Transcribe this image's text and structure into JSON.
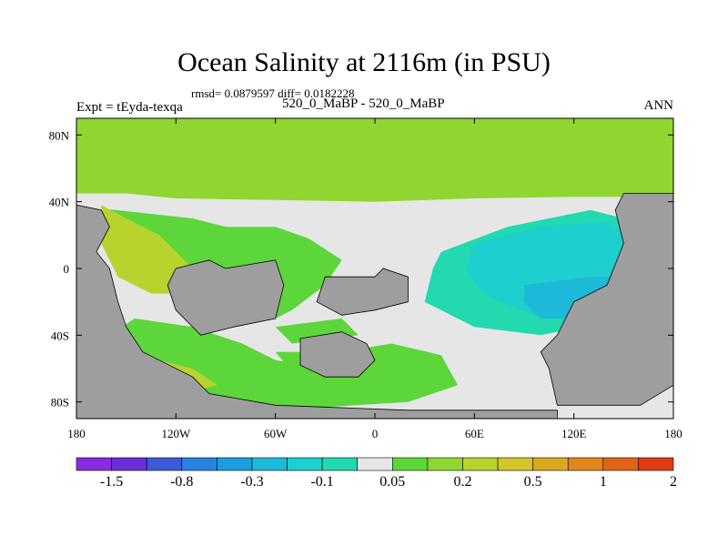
{
  "header": {
    "title": "Ocean Salinity at 2116m (in PSU)",
    "stats": "rmsd= 0.0879597 diff= 0.0182228",
    "left_label": "Expt = tEyda-texqa",
    "center_label": "520_0_MaBP - 520_0_MaBP",
    "right_label": "ANN"
  },
  "chart_data": {
    "type": "heatmap",
    "title": "Ocean Salinity at 2116m (in PSU)",
    "projection": "cylindrical equidistant",
    "x_range": [
      -180,
      180
    ],
    "y_range": [
      -90,
      90
    ],
    "x_ticks": [
      {
        "value": -180,
        "label": "180"
      },
      {
        "value": -120,
        "label": "120W"
      },
      {
        "value": -60,
        "label": "60W"
      },
      {
        "value": 0,
        "label": "0"
      },
      {
        "value": 60,
        "label": "60E"
      },
      {
        "value": 120,
        "label": "120E"
      },
      {
        "value": 180,
        "label": "180"
      }
    ],
    "y_ticks": [
      {
        "value": 80,
        "label": "80N"
      },
      {
        "value": 40,
        "label": "40N"
      },
      {
        "value": 0,
        "label": "0"
      },
      {
        "value": -40,
        "label": "40S"
      },
      {
        "value": -80,
        "label": "80S"
      }
    ],
    "colorbar": {
      "colors": [
        "#8a2be2",
        "#6a2fd8",
        "#3b5bd9",
        "#2a82e0",
        "#1a9ee0",
        "#1eb8d8",
        "#1ecfcf",
        "#22d9b0",
        "#e6e6e6",
        "#5cd63a",
        "#8fd630",
        "#b8d32e",
        "#d4c62a",
        "#dba822",
        "#e0871c",
        "#e06418",
        "#e03c14"
      ],
      "labels": [
        {
          "after_index": 1,
          "text": "-1.5"
        },
        {
          "after_index": 3,
          "text": "-0.8"
        },
        {
          "after_index": 5,
          "text": "-0.3"
        },
        {
          "after_index": 7,
          "text": "-0.1"
        },
        {
          "after_index": 9,
          "text": "0.05"
        },
        {
          "after_index": 11,
          "text": "0.2"
        },
        {
          "after_index": 13,
          "text": "0.5"
        },
        {
          "after_index": 15,
          "text": "1"
        },
        {
          "after_index": 17,
          "text": "2"
        }
      ]
    },
    "regions": [
      {
        "name": "arctic-band",
        "color": "#8fd630",
        "coords": [
          [
            -180,
            90
          ],
          [
            180,
            90
          ],
          [
            180,
            45
          ],
          [
            150,
            43
          ],
          [
            120,
            43
          ],
          [
            60,
            42
          ],
          [
            0,
            40
          ],
          [
            -60,
            41
          ],
          [
            -120,
            42
          ],
          [
            -150,
            45
          ],
          [
            -180,
            45
          ]
        ]
      },
      {
        "name": "near-zero-belt",
        "color": "#e6e6e6",
        "coords": [
          [
            -180,
            45
          ],
          [
            -60,
            38
          ],
          [
            -10,
            34
          ],
          [
            30,
            34
          ],
          [
            120,
            40
          ],
          [
            150,
            38
          ],
          [
            145,
            20
          ],
          [
            120,
            16
          ],
          [
            100,
            -22
          ],
          [
            105,
            -40
          ],
          [
            110,
            -60
          ],
          [
            100,
            -80
          ],
          [
            20,
            -82
          ],
          [
            20,
            -70
          ],
          [
            -40,
            -58
          ],
          [
            -85,
            -52
          ],
          [
            -120,
            -44
          ],
          [
            -165,
            -30
          ],
          [
            -175,
            5
          ],
          [
            -180,
            20
          ]
        ]
      },
      {
        "name": "pacific-green",
        "color": "#5cd63a",
        "coords": [
          [
            -165,
            36
          ],
          [
            -110,
            30
          ],
          [
            -90,
            25
          ],
          [
            -60,
            25
          ],
          [
            -40,
            18
          ],
          [
            -20,
            5
          ],
          [
            -30,
            -10
          ],
          [
            -50,
            -25
          ],
          [
            -60,
            -30
          ],
          [
            -90,
            -20
          ],
          [
            -110,
            -5
          ],
          [
            -130,
            20
          ],
          [
            -160,
            30
          ]
        ]
      },
      {
        "name": "pacific-yellowgreen",
        "color": "#b8d32e",
        "coords": [
          [
            -165,
            38
          ],
          [
            -150,
            30
          ],
          [
            -130,
            20
          ],
          [
            -115,
            5
          ],
          [
            -105,
            -5
          ],
          [
            -115,
            -15
          ],
          [
            -135,
            -15
          ],
          [
            -155,
            -5
          ],
          [
            -165,
            15
          ]
        ]
      },
      {
        "name": "south-pacific-green",
        "color": "#5cd63a",
        "coords": [
          [
            -145,
            -30
          ],
          [
            -110,
            -35
          ],
          [
            -80,
            -45
          ],
          [
            -60,
            -55
          ],
          [
            -30,
            -60
          ],
          [
            0,
            -62
          ],
          [
            20,
            -70
          ],
          [
            20,
            -80
          ],
          [
            -60,
            -85
          ],
          [
            -110,
            -75
          ],
          [
            -140,
            -55
          ],
          [
            -160,
            -40
          ]
        ]
      },
      {
        "name": "southern-yellowgreen",
        "color": "#b8d32e",
        "coords": [
          [
            -130,
            -55
          ],
          [
            -110,
            -60
          ],
          [
            -95,
            -70
          ],
          [
            -115,
            -75
          ],
          [
            -140,
            -65
          ]
        ]
      },
      {
        "name": "south-atlantic-green",
        "color": "#5cd63a",
        "coords": [
          [
            -60,
            -50
          ],
          [
            -20,
            -50
          ],
          [
            10,
            -45
          ],
          [
            40,
            -52
          ],
          [
            50,
            -70
          ],
          [
            20,
            -80
          ],
          [
            -20,
            -72
          ],
          [
            -50,
            -62
          ]
        ]
      },
      {
        "name": "south-atlantic-green-2",
        "color": "#5cd63a",
        "coords": [
          [
            -60,
            -35
          ],
          [
            -20,
            -30
          ],
          [
            -10,
            -40
          ],
          [
            -50,
            -45
          ]
        ]
      },
      {
        "name": "indian-turquoise",
        "color": "#22d9b0",
        "coords": [
          [
            40,
            10
          ],
          [
            80,
            25
          ],
          [
            130,
            35
          ],
          [
            150,
            30
          ],
          [
            155,
            0
          ],
          [
            150,
            -30
          ],
          [
            100,
            -40
          ],
          [
            60,
            -35
          ],
          [
            30,
            -20
          ],
          [
            35,
            0
          ]
        ]
      },
      {
        "name": "indian-cyan",
        "color": "#1ecfcf",
        "coords": [
          [
            60,
            15
          ],
          [
            100,
            25
          ],
          [
            140,
            28
          ],
          [
            150,
            20
          ],
          [
            150,
            -30
          ],
          [
            100,
            -30
          ],
          [
            65,
            -15
          ],
          [
            55,
            0
          ]
        ]
      },
      {
        "name": "indian-blue",
        "color": "#1eb8d8",
        "coords": [
          [
            90,
            -10
          ],
          [
            130,
            -5
          ],
          [
            145,
            -5
          ],
          [
            145,
            -30
          ],
          [
            100,
            -30
          ],
          [
            90,
            -20
          ]
        ]
      },
      {
        "name": "east-continent",
        "color": "#9e9e9e",
        "coords": [
          [
            150,
            45
          ],
          [
            180,
            45
          ],
          [
            180,
            -70
          ],
          [
            160,
            -82
          ],
          [
            110,
            -82
          ],
          [
            105,
            -60
          ],
          [
            100,
            -50
          ],
          [
            110,
            -40
          ],
          [
            120,
            -20
          ],
          [
            140,
            -10
          ],
          [
            150,
            15
          ],
          [
            145,
            35
          ]
        ]
      },
      {
        "name": "west-continent",
        "color": "#9e9e9e",
        "coords": [
          [
            -180,
            38
          ],
          [
            -165,
            35
          ],
          [
            -160,
            25
          ],
          [
            -168,
            10
          ],
          [
            -160,
            0
          ],
          [
            -155,
            -20
          ],
          [
            -150,
            -35
          ],
          [
            -140,
            -50
          ],
          [
            -130,
            -55
          ],
          [
            -110,
            -65
          ],
          [
            -100,
            -75
          ],
          [
            -60,
            -82
          ],
          [
            20,
            -85
          ],
          [
            110,
            -85
          ],
          [
            110,
            -90
          ],
          [
            -180,
            -90
          ]
        ]
      },
      {
        "name": "central-continent-1",
        "color": "#9e9e9e",
        "coords": [
          [
            -120,
            0
          ],
          [
            -100,
            5
          ],
          [
            -90,
            0
          ],
          [
            -60,
            5
          ],
          [
            -55,
            -10
          ],
          [
            -60,
            -30
          ],
          [
            -85,
            -35
          ],
          [
            -105,
            -40
          ],
          [
            -120,
            -25
          ],
          [
            -125,
            -10
          ]
        ]
      },
      {
        "name": "central-continent-2",
        "color": "#9e9e9e",
        "coords": [
          [
            -30,
            -5
          ],
          [
            0,
            -5
          ],
          [
            5,
            0
          ],
          [
            20,
            -5
          ],
          [
            20,
            -20
          ],
          [
            0,
            -25
          ],
          [
            -20,
            -28
          ],
          [
            -35,
            -20
          ]
        ]
      },
      {
        "name": "south-island",
        "color": "#9e9e9e",
        "coords": [
          [
            -45,
            -42
          ],
          [
            -20,
            -38
          ],
          [
            -5,
            -45
          ],
          [
            0,
            -55
          ],
          [
            -10,
            -65
          ],
          [
            -30,
            -65
          ],
          [
            -45,
            -58
          ]
        ]
      }
    ]
  }
}
